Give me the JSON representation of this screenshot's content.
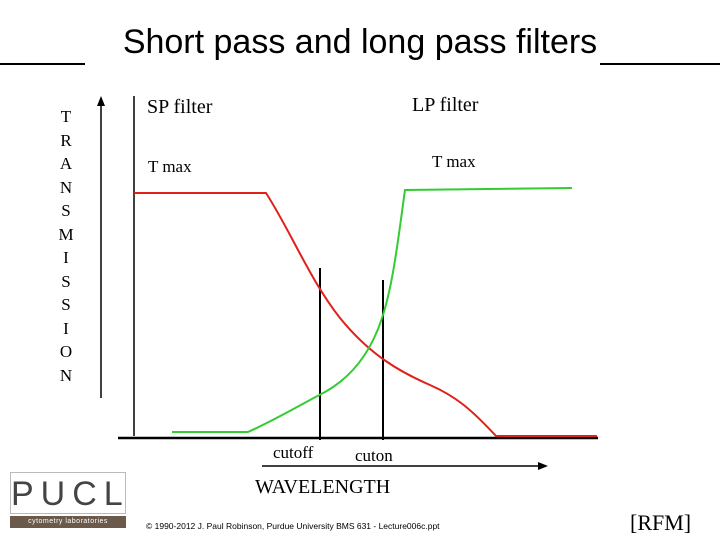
{
  "title": "Short pass and long pass filters",
  "y_axis_label": [
    "T",
    "R",
    "A",
    "N",
    "S",
    "M",
    "I",
    "S",
    "S",
    "I",
    "O",
    "N"
  ],
  "sp_label": "SP filter",
  "lp_label": "LP filter",
  "sp_tmax": "T max",
  "lp_tmax": "T max",
  "cutoff_label": "cutoff",
  "cuton_label": "cuton",
  "x_axis_label": "WAVELENGTH",
  "logo_text": "PUCL",
  "logo_subtext": "cytometry laboratories",
  "copyright": "© 1990-2012 J. Paul Robinson, Purdue University BMS 631 - Lecture006c.ppt",
  "credit": "[RFM]",
  "colors": {
    "sp_curve": "#e0201a",
    "lp_curve": "#33cc33",
    "axes": "#000000"
  }
}
